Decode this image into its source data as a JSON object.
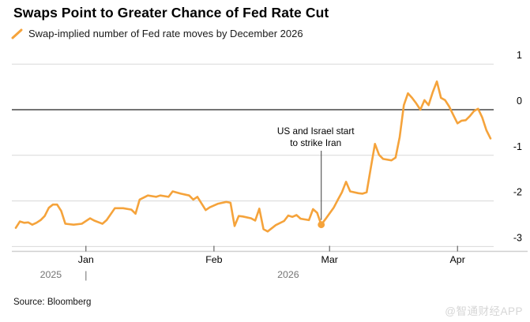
{
  "colors": {
    "line": "#f5a33b",
    "grid": "#d8d8d8",
    "zero_line": "#474747",
    "axis_line": "#cfcfcf",
    "tick": "#4a4a4a",
    "axis_label": "#000000",
    "year_label": "#757575",
    "annotation": "#000000",
    "watermark": "#d6d6d6"
  },
  "footer": {
    "source": "Source: Bloomberg",
    "watermark": "@智通财经APP"
  },
  "chart_data": {
    "type": "line",
    "title": "Swaps Point to Greater Chance of Fed Rate Cut",
    "legend_label": "Swap-implied number of Fed rate moves by December 2026",
    "xlabel": "",
    "ylabel": "",
    "ylim": [
      -3,
      1
    ],
    "yticks": [
      1,
      0,
      -1,
      -2,
      -3
    ],
    "grid": "horizontal",
    "legend_position": "top-left",
    "x_domain": [
      "2025-12-15",
      "2026-04-09"
    ],
    "xticks": [
      {
        "date": "2026-01-01",
        "label": "Jan"
      },
      {
        "date": "2026-02-01",
        "label": "Feb"
      },
      {
        "date": "2026-03-01",
        "label": "Mar"
      },
      {
        "date": "2026-04-01",
        "label": "Apr"
      }
    ],
    "year_labels": [
      {
        "label": "2025",
        "from": "2025-12-15",
        "to": "2026-01-01"
      },
      {
        "label": "2026",
        "from": "2026-01-01",
        "to": "2026-04-09"
      }
    ],
    "year_separator_date": "2026-01-01",
    "annotation": {
      "lines": [
        "US and Israel start",
        "to strike Iran"
      ],
      "date": "2026-02-27",
      "value": -2.52
    },
    "series": [
      {
        "name": "Swap-implied number of Fed rate moves by December 2026",
        "points": [
          [
            "2025-12-15",
            -2.59
          ],
          [
            "2025-12-16",
            -2.45
          ],
          [
            "2025-12-17",
            -2.48
          ],
          [
            "2025-12-18",
            -2.47
          ],
          [
            "2025-12-19",
            -2.52
          ],
          [
            "2025-12-20",
            -2.48
          ],
          [
            "2025-12-21",
            -2.42
          ],
          [
            "2025-12-22",
            -2.33
          ],
          [
            "2025-12-23",
            -2.15
          ],
          [
            "2025-12-24",
            -2.08
          ],
          [
            "2025-12-25",
            -2.08
          ],
          [
            "2025-12-26",
            -2.22
          ],
          [
            "2025-12-27",
            -2.5
          ],
          [
            "2025-12-29",
            -2.52
          ],
          [
            "2025-12-31",
            -2.5
          ],
          [
            "2026-01-02",
            -2.38
          ],
          [
            "2026-01-03",
            -2.43
          ],
          [
            "2026-01-05",
            -2.5
          ],
          [
            "2026-01-06",
            -2.42
          ],
          [
            "2026-01-08",
            -2.16
          ],
          [
            "2026-01-10",
            -2.16
          ],
          [
            "2026-01-12",
            -2.19
          ],
          [
            "2026-01-13",
            -2.28
          ],
          [
            "2026-01-14",
            -1.97
          ],
          [
            "2026-01-16",
            -1.88
          ],
          [
            "2026-01-18",
            -1.91
          ],
          [
            "2026-01-19",
            -1.88
          ],
          [
            "2026-01-21",
            -1.91
          ],
          [
            "2026-01-22",
            -1.79
          ],
          [
            "2026-01-24",
            -1.84
          ],
          [
            "2026-01-26",
            -1.88
          ],
          [
            "2026-01-27",
            -1.97
          ],
          [
            "2026-01-28",
            -1.91
          ],
          [
            "2026-01-30",
            -2.2
          ],
          [
            "2026-01-31",
            -2.14
          ],
          [
            "2026-02-02",
            -2.06
          ],
          [
            "2026-02-04",
            -2.02
          ],
          [
            "2026-02-05",
            -2.04
          ],
          [
            "2026-02-06",
            -2.55
          ],
          [
            "2026-02-07",
            -2.33
          ],
          [
            "2026-02-08",
            -2.34
          ],
          [
            "2026-02-10",
            -2.38
          ],
          [
            "2026-02-11",
            -2.43
          ],
          [
            "2026-02-12",
            -2.17
          ],
          [
            "2026-02-13",
            -2.62
          ],
          [
            "2026-02-14",
            -2.67
          ],
          [
            "2026-02-16",
            -2.53
          ],
          [
            "2026-02-18",
            -2.44
          ],
          [
            "2026-02-19",
            -2.32
          ],
          [
            "2026-02-20",
            -2.35
          ],
          [
            "2026-02-21",
            -2.31
          ],
          [
            "2026-02-22",
            -2.39
          ],
          [
            "2026-02-24",
            -2.42
          ],
          [
            "2026-02-25",
            -2.18
          ],
          [
            "2026-02-26",
            -2.26
          ],
          [
            "2026-02-27",
            -2.52
          ],
          [
            "2026-02-28",
            -2.4
          ],
          [
            "2026-03-02",
            -2.15
          ],
          [
            "2026-03-03",
            -1.98
          ],
          [
            "2026-03-04",
            -1.81
          ],
          [
            "2026-03-05",
            -1.58
          ],
          [
            "2026-03-06",
            -1.79
          ],
          [
            "2026-03-08",
            -1.83
          ],
          [
            "2026-03-09",
            -1.84
          ],
          [
            "2026-03-10",
            -1.81
          ],
          [
            "2026-03-11",
            -1.28
          ],
          [
            "2026-03-12",
            -0.75
          ],
          [
            "2026-03-13",
            -0.99
          ],
          [
            "2026-03-14",
            -1.08
          ],
          [
            "2026-03-16",
            -1.11
          ],
          [
            "2026-03-17",
            -1.05
          ],
          [
            "2026-03-18",
            -0.6
          ],
          [
            "2026-03-19",
            0.1
          ],
          [
            "2026-03-20",
            0.36
          ],
          [
            "2026-03-21",
            0.26
          ],
          [
            "2026-03-22",
            0.14
          ],
          [
            "2026-03-23",
            0.0
          ],
          [
            "2026-03-24",
            0.21
          ],
          [
            "2026-03-25",
            0.1
          ],
          [
            "2026-03-26",
            0.38
          ],
          [
            "2026-03-27",
            0.62
          ],
          [
            "2026-03-28",
            0.26
          ],
          [
            "2026-03-29",
            0.21
          ],
          [
            "2026-03-30",
            0.07
          ],
          [
            "2026-03-31",
            -0.12
          ],
          [
            "2026-04-01",
            -0.3
          ],
          [
            "2026-04-02",
            -0.24
          ],
          [
            "2026-04-03",
            -0.23
          ],
          [
            "2026-04-04",
            -0.14
          ],
          [
            "2026-04-05",
            -0.03
          ],
          [
            "2026-04-06",
            0.02
          ],
          [
            "2026-04-07",
            -0.17
          ],
          [
            "2026-04-08",
            -0.45
          ],
          [
            "2026-04-09",
            -0.63
          ]
        ]
      }
    ]
  }
}
